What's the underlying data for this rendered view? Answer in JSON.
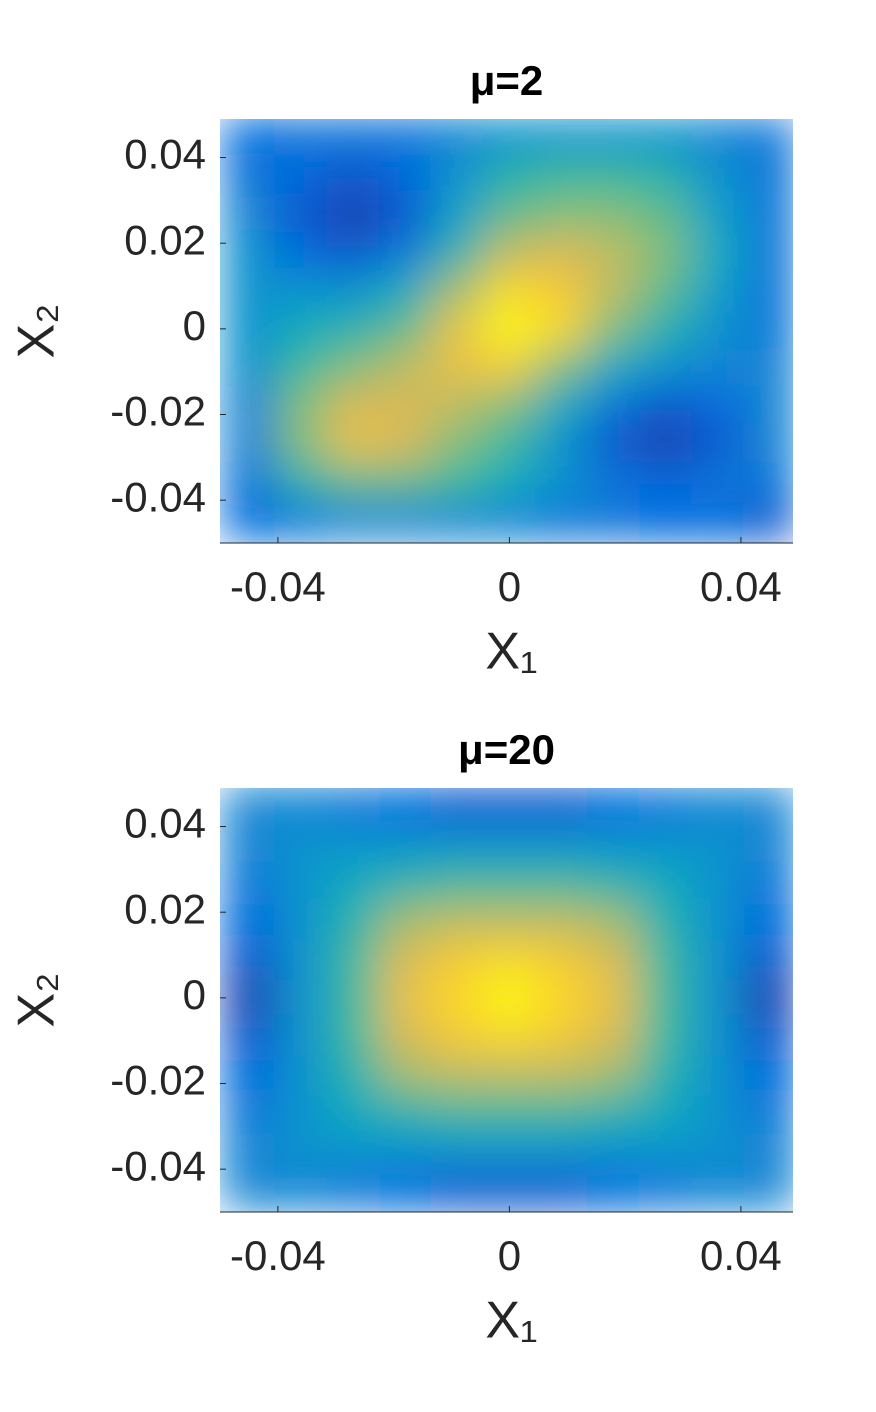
{
  "chart_data": [
    {
      "type": "heatmap",
      "title": "μ=2",
      "xlabel": "X₁",
      "ylabel": "X₂",
      "xlim": [
        -0.05,
        0.049
      ],
      "ylim": [
        -0.05,
        0.049
      ],
      "xticks": [
        -0.04,
        0,
        0.04
      ],
      "yticks": [
        -0.04,
        -0.02,
        0,
        0.02,
        0.04
      ],
      "colormap": [
        "#352a87",
        "#0363e1",
        "#1485d4",
        "#06a7c6",
        "#38b99e",
        "#92bf73",
        "#d9ba56",
        "#fcce2e",
        "#f9fb0e"
      ],
      "x": [
        -0.045,
        -0.036,
        -0.027,
        -0.018,
        -0.009,
        0,
        0.009,
        0.018,
        0.027,
        0.036,
        0.045
      ],
      "y": [
        0.045,
        0.036,
        0.027,
        0.018,
        0.009,
        0,
        -0.009,
        -0.018,
        -0.027,
        -0.036,
        -0.045
      ],
      "z": [
        [
          0.15,
          0.2,
          0.2,
          0.2,
          0.25,
          0.3,
          0.3,
          0.3,
          0.3,
          0.25,
          0.2
        ],
        [
          0.2,
          0.15,
          0.1,
          0.15,
          0.3,
          0.45,
          0.5,
          0.5,
          0.45,
          0.3,
          0.2
        ],
        [
          0.25,
          0.1,
          0.05,
          0.1,
          0.35,
          0.55,
          0.6,
          0.6,
          0.55,
          0.35,
          0.2
        ],
        [
          0.3,
          0.15,
          0.1,
          0.2,
          0.45,
          0.7,
          0.75,
          0.7,
          0.6,
          0.4,
          0.2
        ],
        [
          0.3,
          0.3,
          0.3,
          0.4,
          0.65,
          0.9,
          0.85,
          0.7,
          0.55,
          0.35,
          0.2
        ],
        [
          0.3,
          0.4,
          0.45,
          0.55,
          0.8,
          1,
          0.9,
          0.6,
          0.45,
          0.3,
          0.2
        ],
        [
          0.3,
          0.5,
          0.6,
          0.7,
          0.8,
          0.85,
          0.6,
          0.4,
          0.3,
          0.25,
          0.25
        ],
        [
          0.25,
          0.6,
          0.75,
          0.75,
          0.7,
          0.6,
          0.4,
          0.2,
          0.1,
          0.15,
          0.25
        ],
        [
          0.25,
          0.6,
          0.8,
          0.75,
          0.6,
          0.5,
          0.3,
          0.1,
          0.05,
          0.1,
          0.25
        ],
        [
          0.2,
          0.45,
          0.55,
          0.55,
          0.5,
          0.4,
          0.3,
          0.2,
          0.15,
          0.2,
          0.2
        ],
        [
          0.15,
          0.2,
          0.25,
          0.25,
          0.25,
          0.25,
          0.2,
          0.2,
          0.15,
          0.15,
          0.1
        ]
      ]
    },
    {
      "type": "heatmap",
      "title": "μ=20",
      "xlabel": "X₁",
      "ylabel": "X₂",
      "xlim": [
        -0.05,
        0.049
      ],
      "ylim": [
        -0.05,
        0.049
      ],
      "xticks": [
        -0.04,
        0,
        0.04
      ],
      "yticks": [
        -0.04,
        -0.02,
        0,
        0.02,
        0.04
      ],
      "colormap": [
        "#352a87",
        "#0363e1",
        "#1485d4",
        "#06a7c6",
        "#38b99e",
        "#92bf73",
        "#d9ba56",
        "#fcce2e",
        "#f9fb0e"
      ],
      "x": [
        -0.045,
        -0.036,
        -0.027,
        -0.018,
        -0.009,
        0,
        0.009,
        0.018,
        0.027,
        0.036,
        0.045
      ],
      "y": [
        0.045,
        0.036,
        0.027,
        0.018,
        0.009,
        0,
        -0.009,
        -0.018,
        -0.027,
        -0.036,
        -0.045
      ],
      "z": [
        [
          0.25,
          0.25,
          0.2,
          0.15,
          0.1,
          0.1,
          0.1,
          0.15,
          0.2,
          0.25,
          0.25
        ],
        [
          0.25,
          0.3,
          0.3,
          0.3,
          0.3,
          0.3,
          0.3,
          0.3,
          0.3,
          0.3,
          0.25
        ],
        [
          0.2,
          0.3,
          0.4,
          0.45,
          0.5,
          0.5,
          0.5,
          0.45,
          0.4,
          0.3,
          0.2
        ],
        [
          0.15,
          0.3,
          0.45,
          0.65,
          0.7,
          0.7,
          0.7,
          0.65,
          0.45,
          0.3,
          0.15
        ],
        [
          0.1,
          0.3,
          0.5,
          0.75,
          0.85,
          0.9,
          0.85,
          0.75,
          0.5,
          0.3,
          0.1
        ],
        [
          0.05,
          0.3,
          0.5,
          0.8,
          0.9,
          1,
          0.9,
          0.8,
          0.5,
          0.3,
          0.05
        ],
        [
          0.1,
          0.3,
          0.5,
          0.75,
          0.85,
          0.9,
          0.85,
          0.75,
          0.5,
          0.3,
          0.1
        ],
        [
          0.15,
          0.3,
          0.45,
          0.65,
          0.7,
          0.7,
          0.7,
          0.65,
          0.45,
          0.3,
          0.15
        ],
        [
          0.2,
          0.3,
          0.4,
          0.45,
          0.5,
          0.5,
          0.5,
          0.45,
          0.4,
          0.3,
          0.2
        ],
        [
          0.25,
          0.3,
          0.3,
          0.3,
          0.3,
          0.3,
          0.3,
          0.3,
          0.3,
          0.3,
          0.25
        ],
        [
          0.25,
          0.25,
          0.2,
          0.15,
          0.1,
          0.1,
          0.1,
          0.15,
          0.2,
          0.25,
          0.25
        ]
      ]
    }
  ]
}
